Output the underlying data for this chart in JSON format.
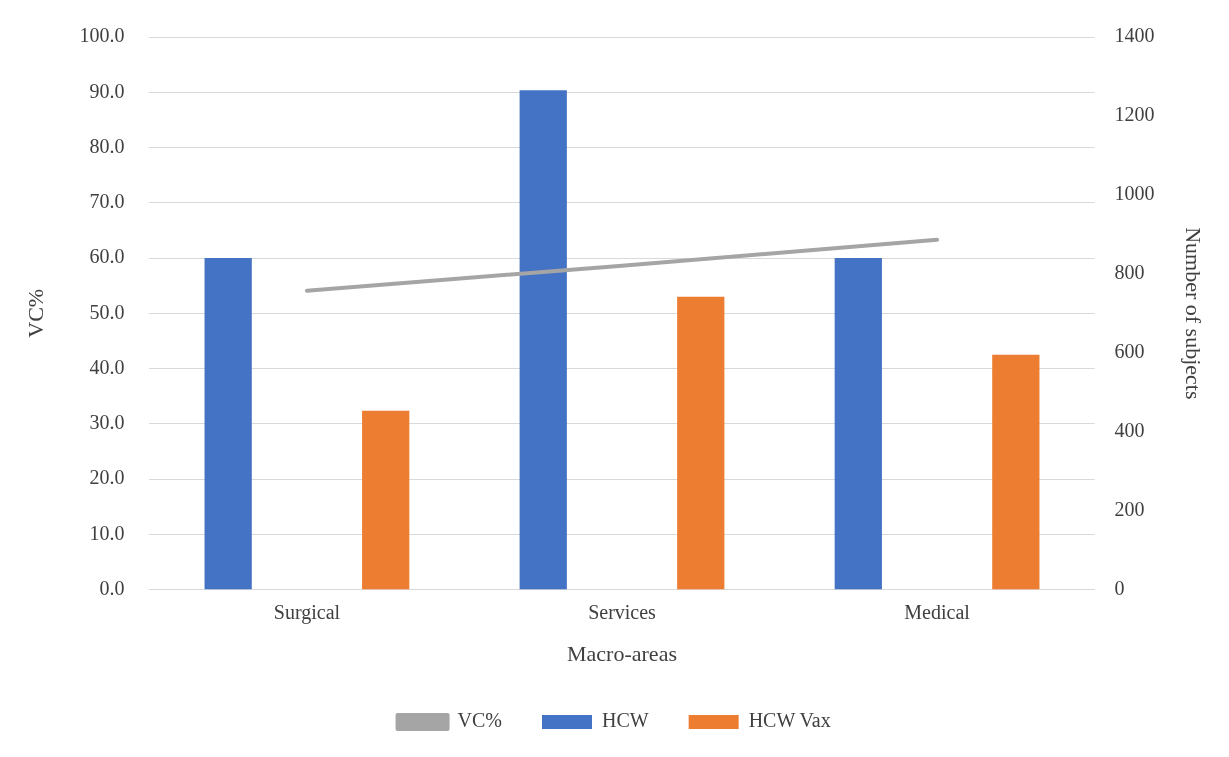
{
  "chart_data": {
    "type": "bar",
    "xlabel": "Macro-areas",
    "ylabel": "VC%",
    "y2label": "Number of subjects",
    "categories": [
      "Surgical",
      "Services",
      "Medical"
    ],
    "series": [
      {
        "name": "HCW",
        "color": "#4472c4",
        "axis": "y2",
        "values": [
          840,
          1265,
          840
        ]
      },
      {
        "name": "HCW Vax",
        "color": "#ed7d31",
        "axis": "y2",
        "values": [
          453,
          742,
          595
        ]
      },
      {
        "name": "VC%",
        "type": "line",
        "color": "#a5a5a5",
        "values": [
          54.1,
          58.6,
          63.3
        ]
      }
    ],
    "ylim": [
      0,
      100
    ],
    "yticks": [
      {
        "value": 0,
        "label": "0.0"
      },
      {
        "value": 10,
        "label": "10.0"
      },
      {
        "value": 20,
        "label": "20.0"
      },
      {
        "value": 30,
        "label": "30.0"
      },
      {
        "value": 40,
        "label": "40.0"
      },
      {
        "value": 50,
        "label": "50.0"
      },
      {
        "value": 60,
        "label": "60.0"
      },
      {
        "value": 70,
        "label": "70.0"
      },
      {
        "value": 80,
        "label": "80.0"
      },
      {
        "value": 90,
        "label": "90.0"
      },
      {
        "value": 100,
        "label": "100.0"
      }
    ],
    "y2lim": [
      0,
      1400
    ],
    "y2ticks": [
      0,
      200,
      400,
      600,
      800,
      1000,
      1200,
      1400
    ],
    "grid": "y",
    "legend": "bottom",
    "marker": "none"
  }
}
